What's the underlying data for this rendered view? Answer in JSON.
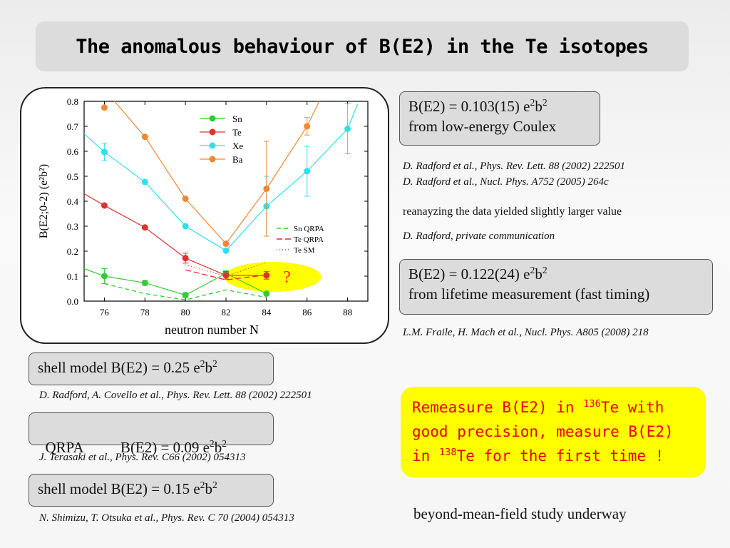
{
  "title": "The anomalous behaviour of B(E2) in the Te isotopes",
  "boxes": {
    "coulex": {
      "line1_pre": "B(E2) = 0.103(15) e",
      "sup1": "2",
      "line1_mid": "b",
      "sup2": "2",
      "line2": "from low-energy Coulex"
    },
    "lifetime": {
      "line1_pre": "B(E2) = 0.122(24) e",
      "sup1": "2",
      "line1_mid": "b",
      "sup2": "2",
      "line2": "from lifetime measurement (fast timing)"
    },
    "shell1": {
      "pre": "shell model  B(E2) = 0.25 e",
      "sup1": "2",
      "mid": "b",
      "sup2": "2"
    },
    "qrpa": {
      "pre": "QRPA          B(E2) = 0.09 e",
      "sup1": "2",
      "mid": "b",
      "sup2": "2"
    },
    "shell2": {
      "pre": "shell model  B(E2) = 0.15 e",
      "sup1": "2",
      "mid": "b",
      "sup2": "2"
    }
  },
  "refs": {
    "radford1": "D. Radford et al., Phys. Rev. Lett. 88 (2002) 222501",
    "radford2": "D. Radford et al., Nucl. Phys. A752 (2005) 264c",
    "reanalysis": "reanayzing the data yielded slightly larger value",
    "private": "D. Radford, private communication",
    "fraile": "L.M. Fraile, H. Mach et al., Nucl. Phys. A805 (2008) 218",
    "covello": "D. Radford, A. Covello et al., Phys. Rev. Lett. 88 (2002) 222501",
    "terasaki": "J. Terasaki et al., Phys. Rev. C66 (2002) 054313",
    "shimizu": "N. Shimizu, T. Otsuka et al., Phys. Rev. C 70 (2004) 054313"
  },
  "callout": {
    "l1_pre": "Remeasure B(E2) in ",
    "l1_sup": "136",
    "l1_post": "Te with",
    "l2": "good precision, measure B(E2)",
    "l3_pre": "in ",
    "l3_sup": "138",
    "l3_post": "Te for the first time !"
  },
  "footer": "beyond-mean-field study underway",
  "chart_data": {
    "type": "line",
    "xlabel": "neutron number N",
    "ylabel": "B(E2;0-2) (e²b²)",
    "xlim": [
      75,
      89
    ],
    "ylim": [
      0,
      0.8
    ],
    "xticks": [
      76,
      78,
      80,
      82,
      84,
      86,
      88
    ],
    "yticks": [
      0.0,
      0.1,
      0.2,
      0.3,
      0.4,
      0.5,
      0.6,
      0.7,
      0.8
    ],
    "ytick_labels": [
      "0.0",
      "0.1",
      "0.2",
      "0.3",
      "0.4",
      "0.5",
      "0.6",
      "0.7",
      "0.8"
    ],
    "legend_position": "top-right",
    "series": [
      {
        "name": "Sn",
        "color": "#33cc33",
        "x": [
          76,
          78,
          80,
          82,
          84
        ],
        "y": [
          0.1,
          0.073,
          0.024,
          0.111,
          0.03
        ],
        "yerr": [
          0.03,
          0.01,
          0.01,
          0.01,
          0.0
        ]
      },
      {
        "name": "Te",
        "color": "#e03030",
        "x": [
          76,
          78,
          80,
          82,
          84
        ],
        "y": [
          0.383,
          0.295,
          0.172,
          0.103,
          0.103
        ],
        "yerr": [
          0.0,
          0.0,
          0.02,
          0.015,
          0.015
        ]
      },
      {
        "name": "Xe",
        "color": "#33ddee",
        "x": [
          76,
          78,
          80,
          82,
          84,
          86,
          88
        ],
        "y": [
          0.597,
          0.477,
          0.3,
          0.202,
          0.38,
          0.52,
          0.69
        ],
        "yerr": [
          0.035,
          0.0,
          0.0,
          0.0,
          0.12,
          0.1,
          0.1
        ]
      },
      {
        "name": "Ba",
        "color": "#ee8833",
        "x": [
          76,
          78,
          80,
          82,
          84,
          86
        ],
        "y": [
          0.775,
          0.658,
          0.41,
          0.23,
          0.45,
          0.7
        ],
        "yerr": [
          0.0,
          0.0,
          0.0,
          0.0,
          0.19,
          0.035
        ]
      }
    ],
    "line_series": [
      {
        "name": "Sn QRPA",
        "color": "#33cc33",
        "dash": "6,4",
        "x": [
          76,
          78,
          80,
          82,
          84
        ],
        "y": [
          0.07,
          0.03,
          0.005,
          0.045,
          0.015
        ]
      },
      {
        "name": "Te QRPA",
        "color": "#e03030",
        "dash": "8,4",
        "x": [
          80,
          82,
          84
        ],
        "y": [
          0.125,
          0.085,
          0.105
        ]
      },
      {
        "name": "Te SM",
        "color": "#e03030",
        "dash": "1,3",
        "x": [
          80,
          82,
          84
        ],
        "y": [
          0.145,
          0.1,
          0.155
        ]
      }
    ],
    "trend_lines": [
      {
        "color": "#e03030",
        "x": [
          75,
          76,
          78,
          80,
          82,
          84
        ],
        "y": [
          0.43,
          0.383,
          0.295,
          0.172,
          0.103,
          0.103
        ]
      },
      {
        "color": "#33ddee",
        "x": [
          75,
          76,
          78,
          80,
          82,
          84,
          86,
          88,
          88.5
        ],
        "y": [
          0.67,
          0.597,
          0.477,
          0.3,
          0.202,
          0.38,
          0.52,
          0.69,
          0.79
        ]
      },
      {
        "color": "#ee8833",
        "x": [
          76.5,
          78,
          80,
          82,
          84,
          86,
          86.6
        ],
        "y": [
          0.8,
          0.658,
          0.41,
          0.23,
          0.45,
          0.7,
          0.8
        ]
      },
      {
        "color": "#33cc33",
        "x": [
          75,
          76,
          78,
          80,
          82,
          84
        ],
        "y": [
          0.13,
          0.1,
          0.073,
          0.024,
          0.111,
          0.03
        ]
      }
    ],
    "annotation": {
      "text": "?",
      "color": "#ff2200",
      "fill": "#ffff00",
      "x": 84.8,
      "y": 0.1
    }
  }
}
